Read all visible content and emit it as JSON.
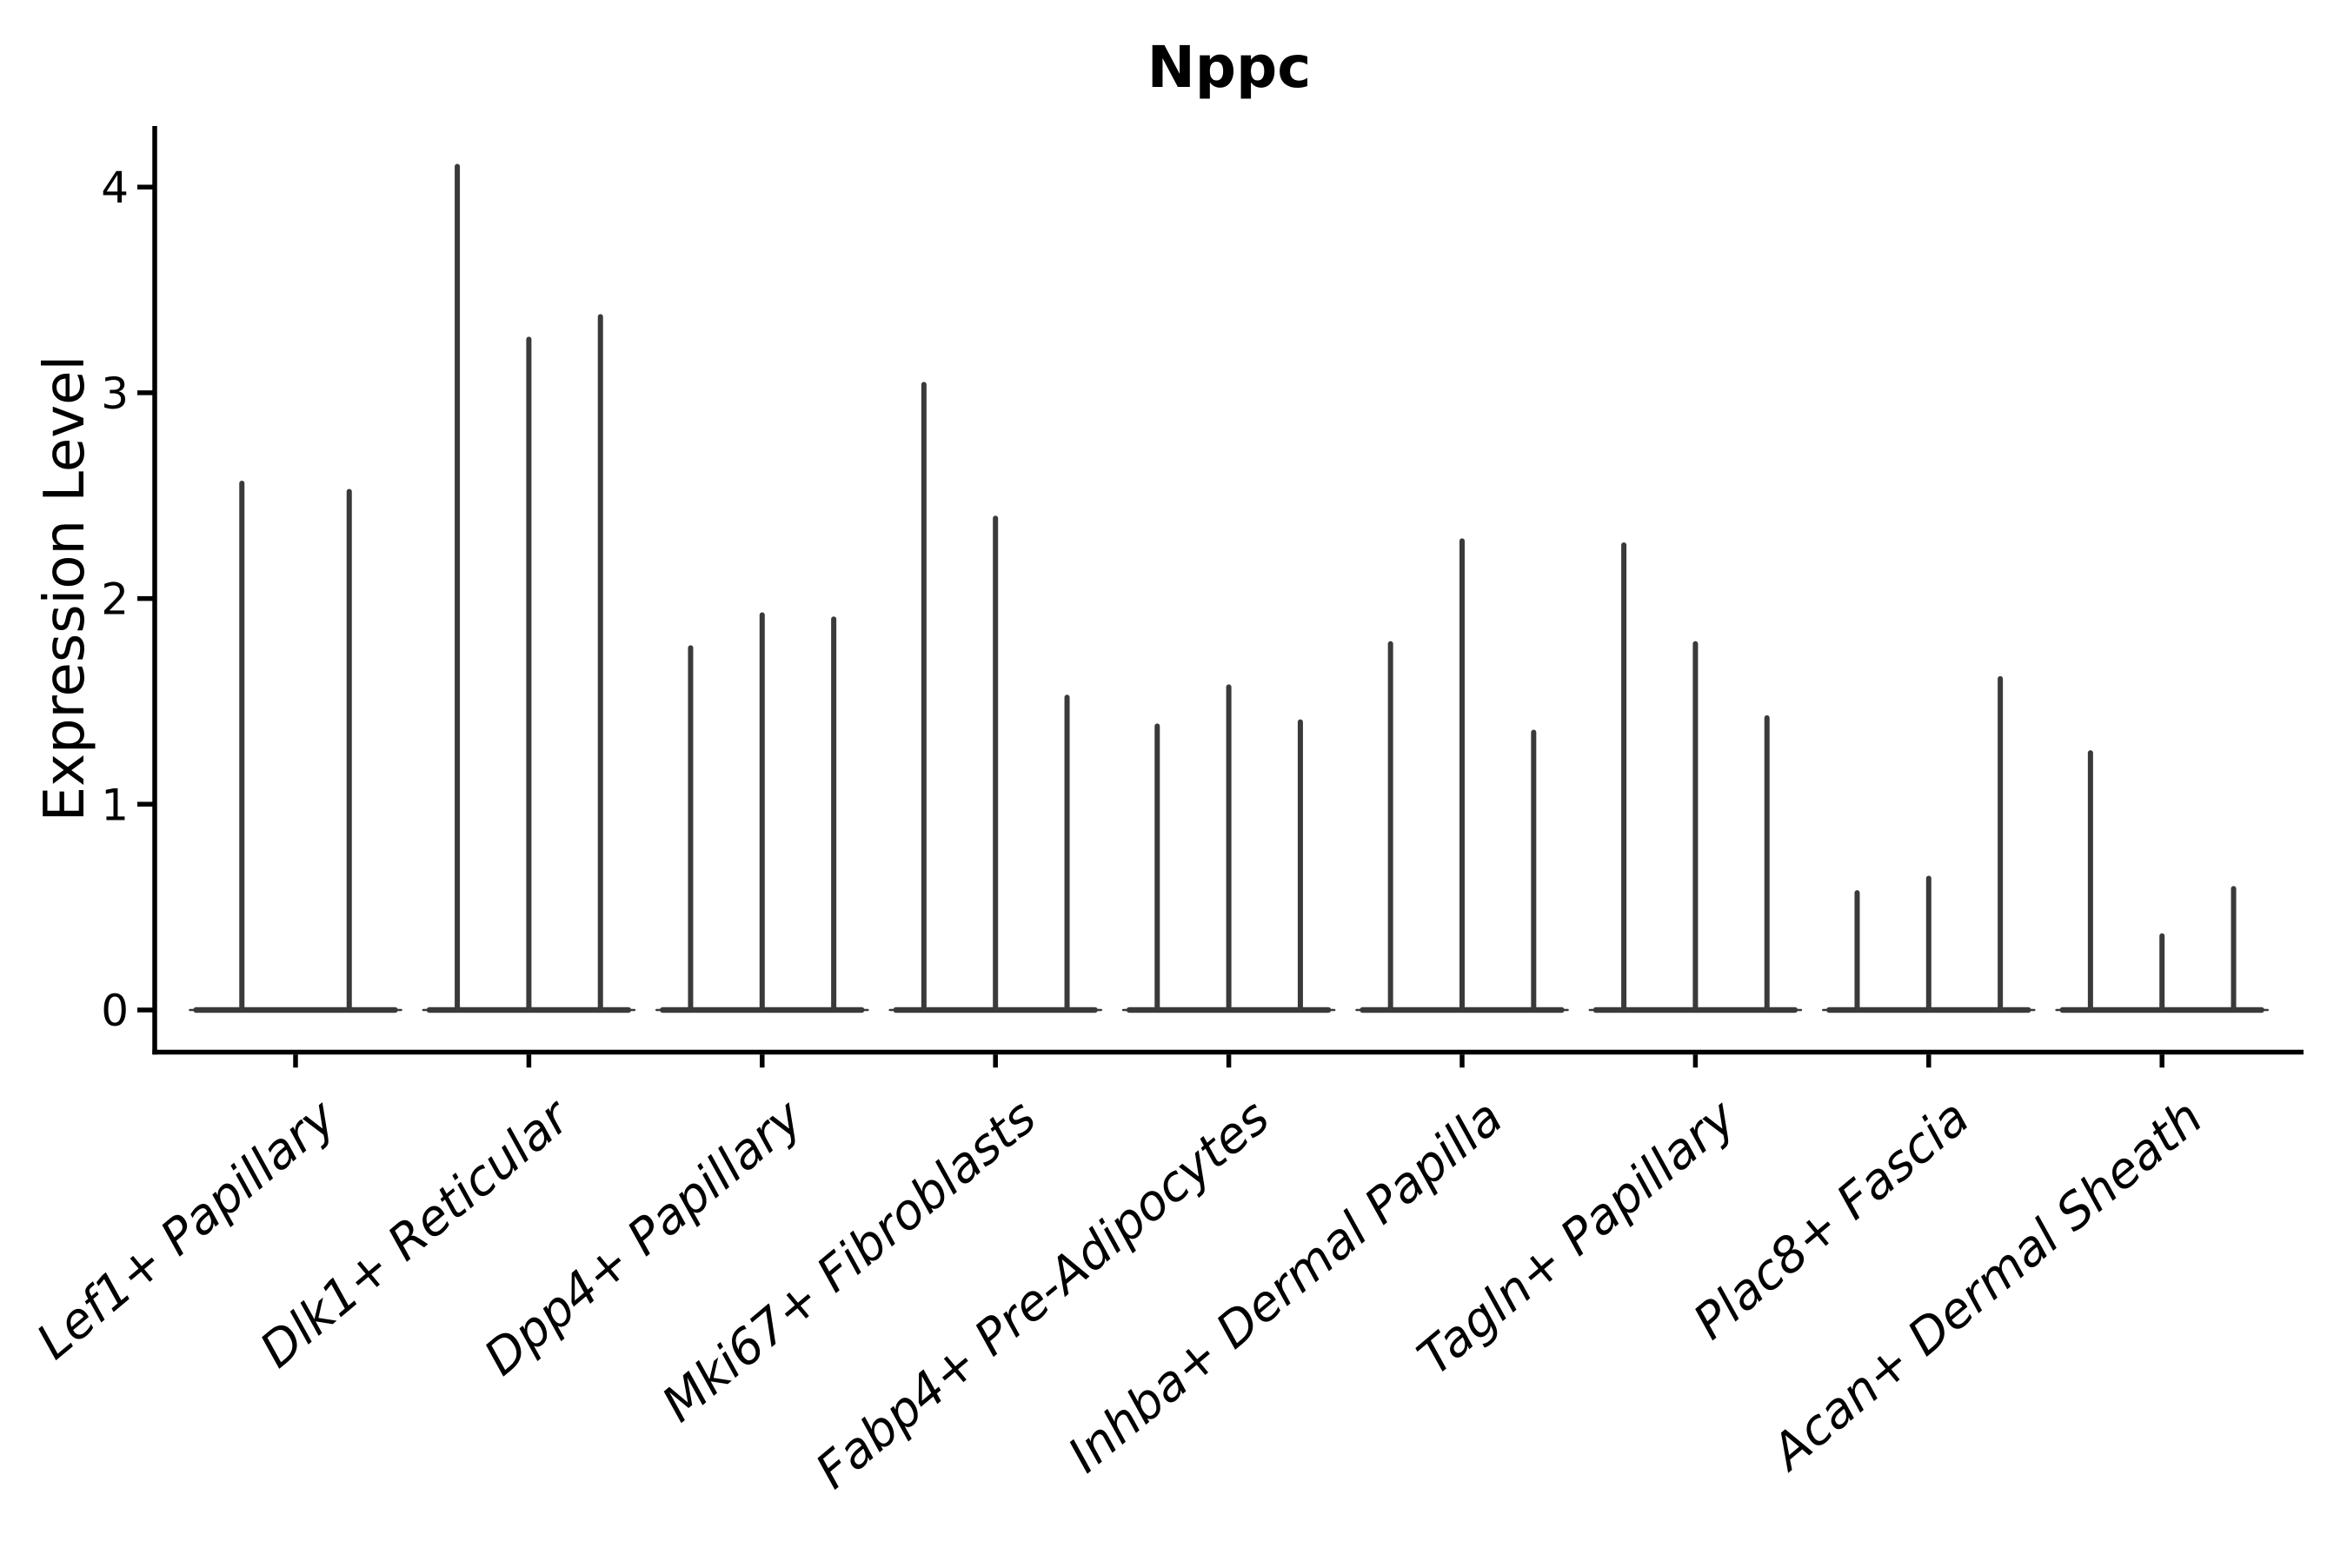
{
  "figure": {
    "title": "Nppc",
    "ylabel": "Expression Level"
  },
  "chart_data": {
    "type": "violin",
    "title": "Nppc",
    "xlabel": "",
    "ylabel": "Expression Level",
    "ylim": [
      -0.2,
      4.3
    ],
    "yticks": [
      0,
      1,
      2,
      3,
      4
    ],
    "grid": false,
    "legend": "none",
    "x_tick_rotation_deg": 40,
    "categories": [
      "Lef1+ Papillary",
      "Dlk1+ Reticular",
      "Dpp4+ Papillary",
      "Mki67+ Fibroblasts",
      "Fabp4+ Pre-Adipocytes",
      "Inhba+ Dermal Papilla",
      "Tagln+ Papillary",
      "Plac8+ Fascia",
      "Acan+ Dermal Sheath"
    ],
    "groups": [
      {
        "category": "Lef1+ Papillary",
        "violin_maxima": [
          2.56,
          2.52
        ]
      },
      {
        "category": "Dlk1+ Reticular",
        "violin_maxima": [
          4.1,
          3.26,
          3.37
        ]
      },
      {
        "category": "Dpp4+ Papillary",
        "violin_maxima": [
          1.76,
          1.92,
          1.9
        ]
      },
      {
        "category": "Mki67+ Fibroblasts",
        "violin_maxima": [
          3.04,
          2.39,
          1.52
        ]
      },
      {
        "category": "Fabp4+ Pre-Adipocytes",
        "violin_maxima": [
          1.38,
          1.57,
          1.4
        ]
      },
      {
        "category": "Inhba+ Dermal Papilla",
        "violin_maxima": [
          1.78,
          2.28,
          1.35
        ]
      },
      {
        "category": "Tagln+ Papillary",
        "violin_maxima": [
          2.26,
          1.78,
          1.42
        ]
      },
      {
        "category": "Plac8+ Fascia",
        "violin_maxima": [
          0.57,
          0.64,
          1.61
        ]
      },
      {
        "category": "Acan+ Dermal Sheath",
        "violin_maxima": [
          1.25,
          0.36,
          0.59
        ]
      }
    ],
    "description": "Violin plot of Nppc expression; each category shows thin spike-like violins (baseline mass at 0 with narrow spikes up to the maximum expression value).",
    "colors": {
      "violin": "#3a3a3a",
      "axis": "#000000",
      "text": "#000000",
      "background": "#ffffff"
    }
  }
}
